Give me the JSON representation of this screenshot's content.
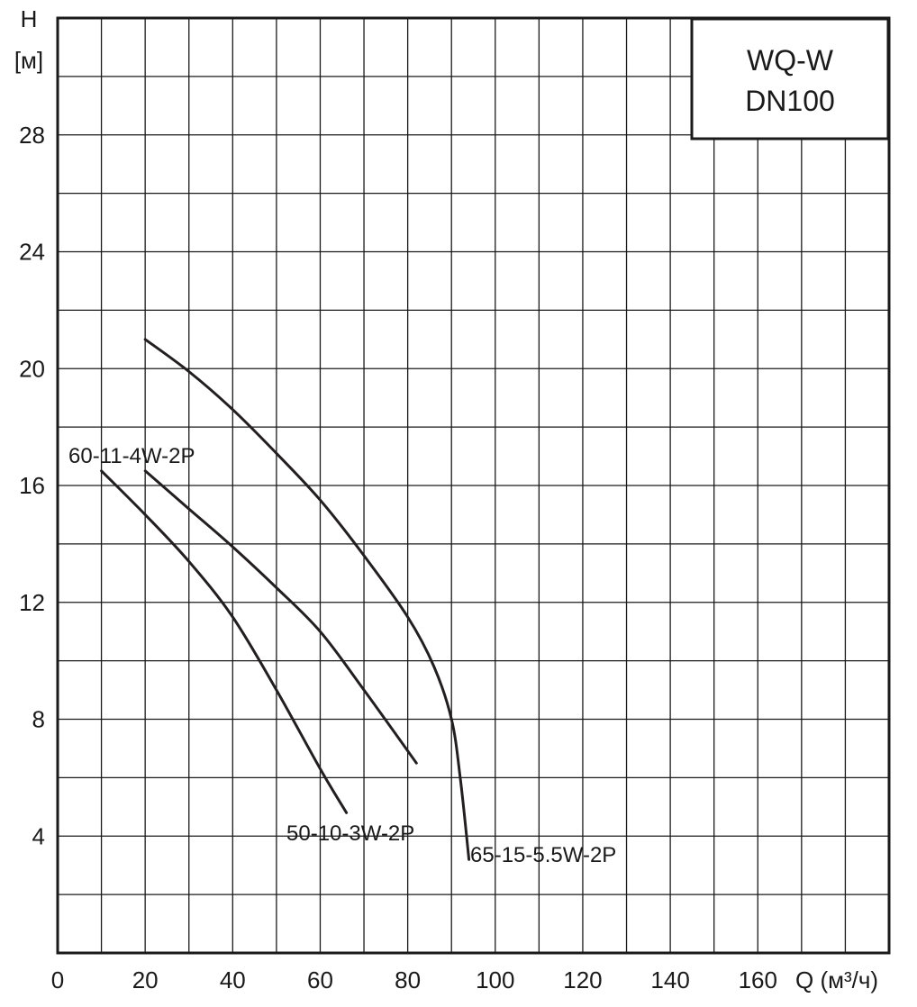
{
  "chart_data": {
    "type": "line",
    "title_lines": [
      "WQ-W",
      "DN100"
    ],
    "ylabel": "H",
    "yunit": "[м]",
    "xlabel": "Q (м³/ч)",
    "xlim": [
      0,
      190
    ],
    "ylim": [
      0,
      32
    ],
    "x_ticks": [
      0,
      20,
      40,
      60,
      80,
      100,
      120,
      140,
      160
    ],
    "y_ticks": [
      4,
      8,
      12,
      16,
      20,
      24,
      28
    ],
    "grid": true,
    "grid_step_x": 10,
    "grid_step_y": 2,
    "series": [
      {
        "name": "50-10-3W-2P",
        "x": [
          10,
          20,
          30,
          40,
          50,
          60,
          66
        ],
        "y": [
          16.5,
          15.0,
          13.4,
          11.5,
          9.0,
          6.3,
          4.8
        ]
      },
      {
        "name": "60-11-4W-2P",
        "x": [
          20,
          30,
          40,
          50,
          60,
          70,
          82
        ],
        "y": [
          16.5,
          15.2,
          13.9,
          12.5,
          11.0,
          9.0,
          6.5
        ]
      },
      {
        "name": "65-15-5.5W-2P",
        "x": [
          20,
          30,
          40,
          50,
          60,
          70,
          80,
          86,
          90,
          92,
          94
        ],
        "y": [
          21.0,
          19.9,
          18.6,
          17.1,
          15.5,
          13.6,
          11.5,
          9.8,
          8.0,
          6.0,
          3.2
        ]
      }
    ],
    "colors": {
      "curve": "#231f20",
      "grid": "#1a1a1a",
      "axis": "#1a1a1a"
    }
  }
}
